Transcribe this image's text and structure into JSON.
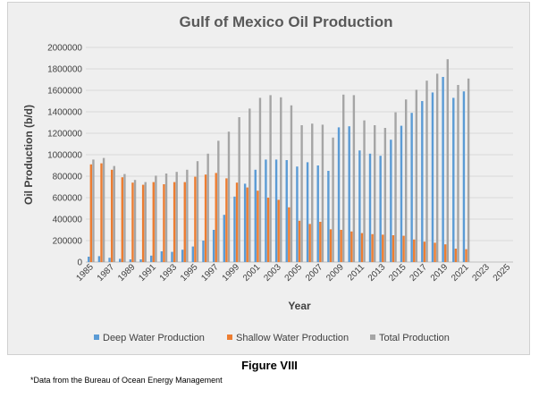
{
  "chart_data": {
    "type": "bar",
    "title": "Gulf of Mexico Oil Production",
    "xlabel": "Year",
    "ylabel": "Oil Production (b/d)",
    "ylim": [
      0,
      2000000
    ],
    "yticks": [
      0,
      200000,
      400000,
      600000,
      800000,
      1000000,
      1200000,
      1400000,
      1600000,
      1800000,
      2000000
    ],
    "xtick_labels": [
      "1985",
      "1987",
      "1989",
      "1991",
      "1993",
      "1995",
      "1997",
      "1999",
      "2001",
      "2003",
      "2005",
      "2007",
      "2009",
      "2011",
      "2013",
      "2015",
      "2017",
      "2019",
      "2021",
      "2023",
      "2025"
    ],
    "categories": [
      "1985",
      "1986",
      "1987",
      "1988",
      "1989",
      "1990",
      "1991",
      "1992",
      "1993",
      "1994",
      "1995",
      "1996",
      "1997",
      "1998",
      "1999",
      "2000",
      "2001",
      "2002",
      "2003",
      "2004",
      "2005",
      "2006",
      "2007",
      "2008",
      "2009",
      "2010",
      "2011",
      "2012",
      "2013",
      "2014",
      "2015",
      "2016",
      "2017",
      "2018",
      "2019",
      "2020",
      "2021",
      "2022",
      "2023",
      "2024",
      "2025"
    ],
    "series": [
      {
        "name": "Deep Water Production",
        "color": "#5b9bd5",
        "values": [
          50000,
          55000,
          40000,
          30000,
          25000,
          25000,
          60000,
          100000,
          95000,
          115000,
          145000,
          200000,
          300000,
          440000,
          610000,
          730000,
          860000,
          955000,
          955000,
          950000,
          890000,
          930000,
          900000,
          850000,
          1255000,
          1265000,
          1040000,
          1010000,
          990000,
          1140000,
          1270000,
          1390000,
          1500000,
          1580000,
          1725000,
          1530000,
          1590000,
          0,
          0,
          0,
          0
        ]
      },
      {
        "name": "Shallow Water Production",
        "color": "#ed7d31",
        "values": [
          910000,
          920000,
          860000,
          790000,
          740000,
          720000,
          745000,
          725000,
          745000,
          745000,
          795000,
          815000,
          830000,
          780000,
          740000,
          695000,
          665000,
          600000,
          580000,
          510000,
          385000,
          355000,
          375000,
          305000,
          300000,
          285000,
          270000,
          260000,
          255000,
          250000,
          245000,
          210000,
          190000,
          180000,
          165000,
          125000,
          120000,
          0,
          0,
          0,
          0
        ]
      },
      {
        "name": "Total Production",
        "color": "#a5a5a5",
        "values": [
          955000,
          970000,
          895000,
          820000,
          765000,
          745000,
          805000,
          825000,
          840000,
          860000,
          940000,
          1010000,
          1130000,
          1215000,
          1350000,
          1430000,
          1530000,
          1555000,
          1535000,
          1460000,
          1275000,
          1290000,
          1280000,
          1160000,
          1560000,
          1555000,
          1320000,
          1275000,
          1250000,
          1395000,
          1515000,
          1605000,
          1690000,
          1755000,
          1890000,
          1650000,
          1710000,
          0,
          0,
          0,
          0
        ]
      }
    ],
    "legend_position": "bottom",
    "grid": "horizontal"
  },
  "caption": "Figure VIII",
  "footnote": "*Data from the Bureau of Ocean Energy Management"
}
